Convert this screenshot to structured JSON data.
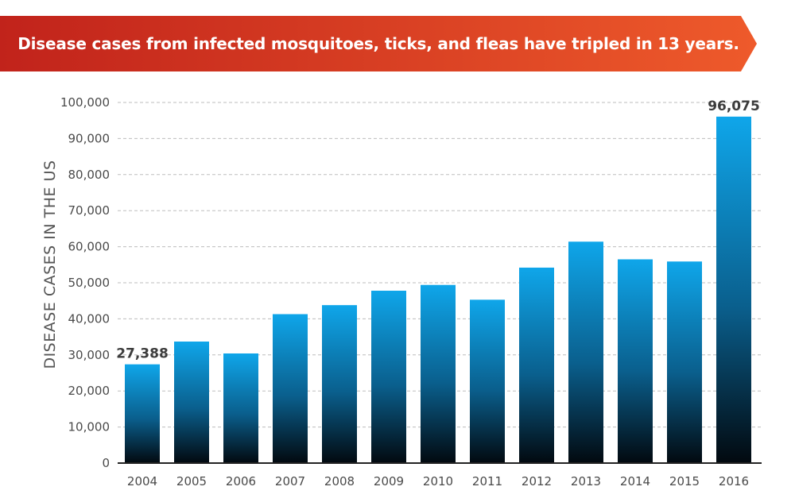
{
  "banner": {
    "title": "Disease cases from infected mosquitoes, ticks, and fleas have tripled in 13 years."
  },
  "colors": {
    "banner_left": "#c1231b",
    "banner_right": "#ee5a2b",
    "bar_top": "#0fa6ea",
    "bar_bottom": "#02090f",
    "gridline": "#bdbdbd",
    "axis": "#222222"
  },
  "chart_data": {
    "type": "bar",
    "title": "Disease cases from infected mosquitoes, ticks, and fleas have tripled in 13 years.",
    "xlabel": "",
    "ylabel": "DISEASE CASES IN THE US",
    "categories": [
      "2004",
      "2005",
      "2006",
      "2007",
      "2008",
      "2009",
      "2010",
      "2011",
      "2012",
      "2013",
      "2014",
      "2015",
      "2016"
    ],
    "values": [
      27388,
      33700,
      30400,
      41300,
      43800,
      47800,
      49400,
      45300,
      54200,
      61400,
      56500,
      55900,
      96075
    ],
    "data_labels": [
      {
        "category": "2004",
        "text": "27,388"
      },
      {
        "category": "2016",
        "text": "96,075"
      }
    ],
    "ylim": [
      0,
      100000
    ],
    "yticks": [
      {
        "value": 0,
        "label": "0"
      },
      {
        "value": 10000,
        "label": "10,000"
      },
      {
        "value": 20000,
        "label": "20,000"
      },
      {
        "value": 30000,
        "label": "30,000"
      },
      {
        "value": 40000,
        "label": "40,000"
      },
      {
        "value": 50000,
        "label": "50,000"
      },
      {
        "value": 60000,
        "label": "60,000"
      },
      {
        "value": 70000,
        "label": "70,000"
      },
      {
        "value": 80000,
        "label": "80,000"
      },
      {
        "value": 90000,
        "label": "90,000"
      },
      {
        "value": 100000,
        "label": "100,000"
      }
    ],
    "grid": true,
    "grid_style": "dashed",
    "legend": "none"
  }
}
